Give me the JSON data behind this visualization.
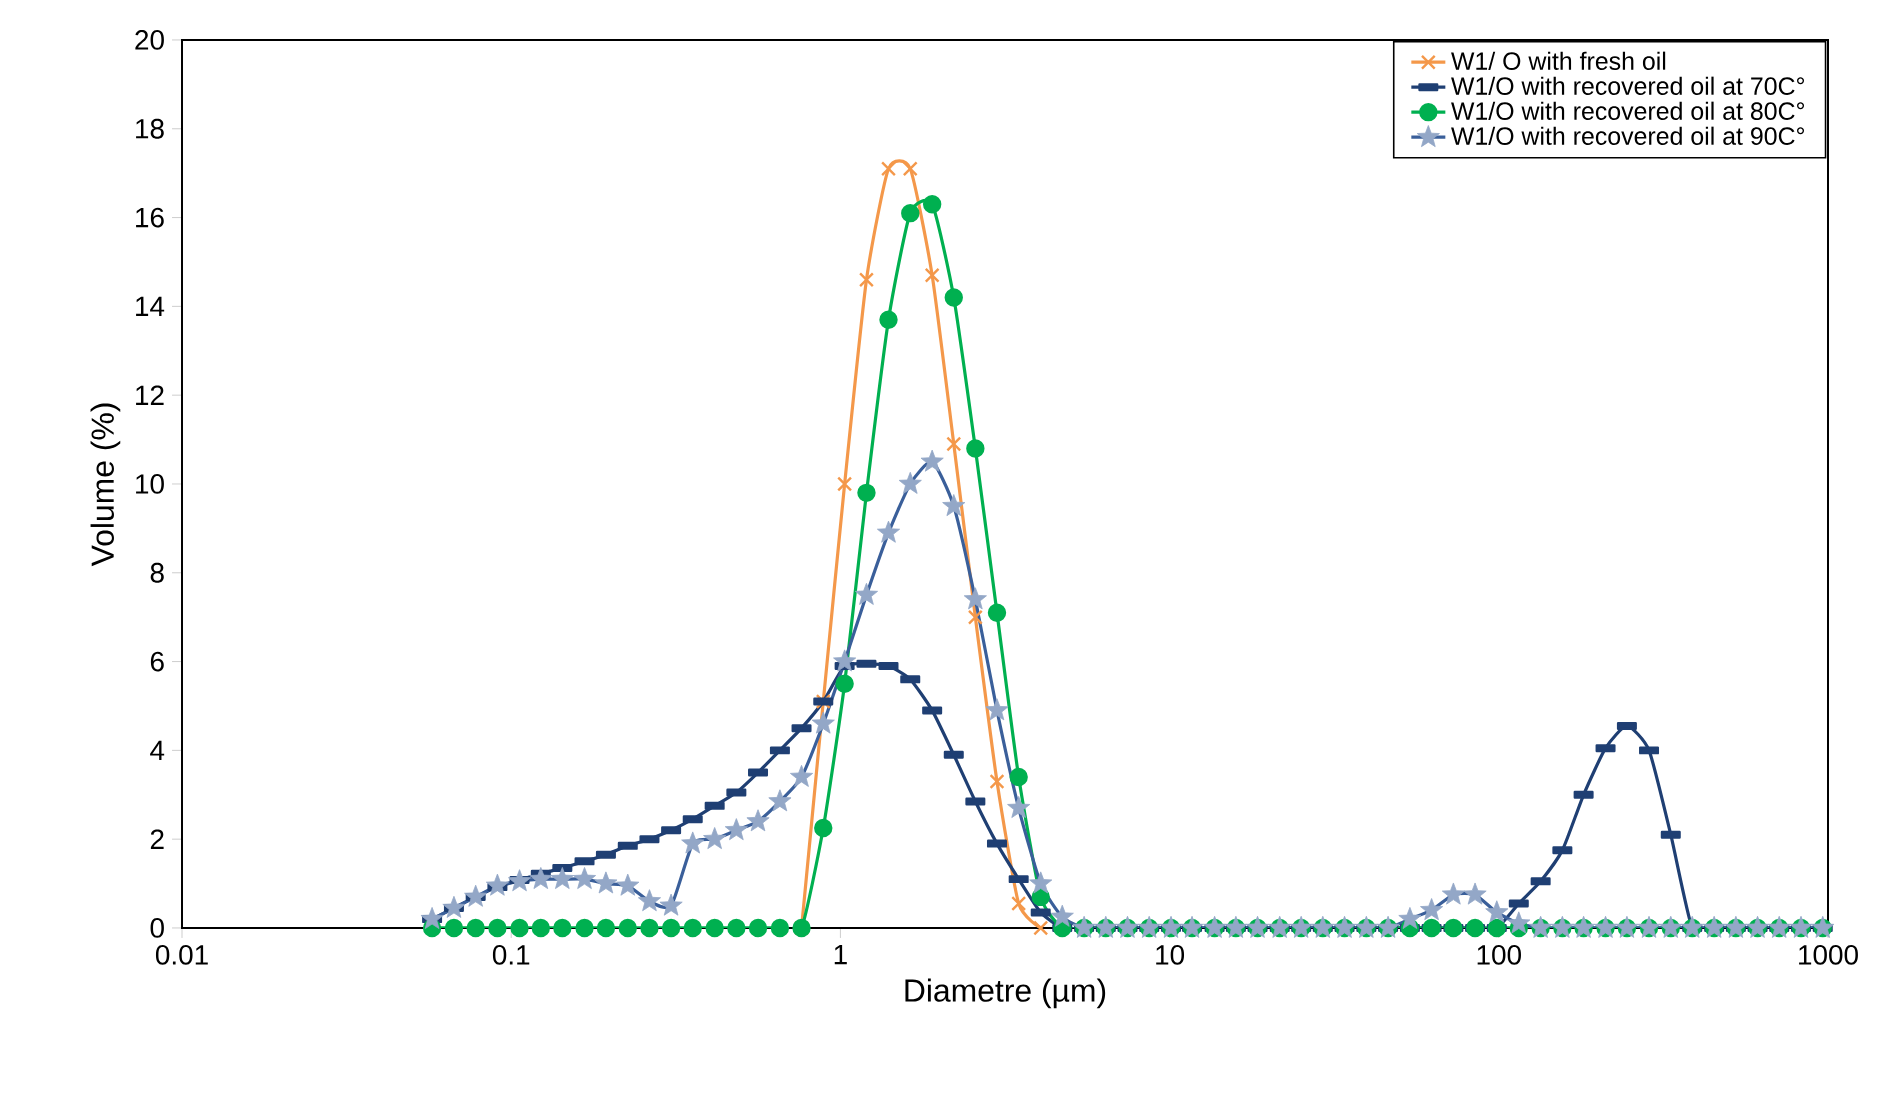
{
  "chart_data": {
    "type": "line",
    "xlabel": "Diametre (µm)",
    "ylabel": "Volume (%)",
    "log": "x",
    "xlim": [
      0.01,
      1000
    ],
    "xticks": [
      0.01,
      0.1,
      1,
      10,
      100,
      1000
    ],
    "ylim": [
      0,
      20
    ],
    "yticks": [
      0,
      2,
      4,
      6,
      8,
      10,
      12,
      14,
      16,
      18,
      20
    ],
    "grid": false,
    "legend": "top right",
    "line_style": "solid",
    "x": [
      0.0575,
      0.067,
      0.078,
      0.0908,
      0.106,
      0.123,
      0.143,
      0.167,
      0.194,
      0.226,
      0.263,
      0.306,
      0.356,
      0.415,
      0.483,
      0.562,
      0.655,
      0.762,
      0.887,
      1.03,
      1.2,
      1.4,
      1.63,
      1.9,
      2.21,
      2.57,
      2.99,
      3.48,
      4.06,
      4.72,
      5.5,
      6.4,
      7.45,
      8.67,
      10.1,
      11.7,
      13.7,
      15.9,
      18.5,
      21.6,
      25.1,
      29.2,
      34,
      39.6,
      46.1,
      53.7,
      62.5,
      72.8,
      84.7,
      98.6,
      115,
      134,
      156,
      181,
      211,
      245,
      286,
      333,
      387,
      451,
      525,
      611,
      711,
      828,
      964
    ],
    "series": [
      {
        "name": "W1/ O with fresh oil",
        "color": "#f4984a",
        "marker": "cross",
        "values": [
          null,
          null,
          null,
          null,
          null,
          null,
          null,
          null,
          null,
          null,
          null,
          null,
          null,
          null,
          null,
          null,
          null,
          0,
          5.1,
          10,
          14.6,
          17.1,
          17.1,
          14.7,
          10.9,
          7,
          3.3,
          0.55,
          0,
          null,
          null,
          null,
          null,
          null,
          null,
          null,
          null,
          null,
          null,
          null,
          null,
          null,
          null,
          null,
          null,
          null,
          null,
          null,
          null,
          null,
          null,
          null,
          null,
          null,
          null,
          null,
          null,
          null,
          null,
          null,
          null,
          null,
          null,
          null,
          null
        ]
      },
      {
        "name": "W1/O with recovered oil  at 70C°",
        "color": "#1f3f73",
        "marker": "square",
        "values": [
          0.2,
          0.45,
          0.7,
          0.92,
          1.08,
          1.22,
          1.35,
          1.5,
          1.65,
          1.85,
          2,
          2.2,
          2.45,
          2.75,
          3.05,
          3.5,
          4,
          4.5,
          5.1,
          5.9,
          5.95,
          5.9,
          5.6,
          4.9,
          3.9,
          2.85,
          1.9,
          1.1,
          0.35,
          0,
          0,
          0,
          0,
          0,
          0,
          0,
          0,
          0,
          0,
          0,
          0,
          0,
          0,
          0,
          0,
          0,
          0,
          0,
          0,
          0,
          0.55,
          1.05,
          1.75,
          3,
          4.05,
          4.55,
          4,
          2.1,
          0,
          0,
          0,
          0,
          0,
          0,
          0
        ]
      },
      {
        "name": "W1/O with recovered oil at 80C°",
        "color": "#00b050",
        "marker": "circle",
        "values": [
          0,
          0,
          0,
          0,
          0,
          0,
          0,
          0,
          0,
          0,
          0,
          0,
          0,
          0,
          0,
          0,
          0,
          0,
          2.25,
          5.5,
          9.8,
          13.7,
          16.1,
          16.3,
          14.2,
          10.8,
          7.1,
          3.4,
          0.7,
          0,
          0,
          0,
          0,
          0,
          0,
          0,
          0,
          0,
          0,
          0,
          0,
          0,
          0,
          0,
          0,
          0,
          0,
          0,
          0,
          0,
          0,
          0,
          0,
          0,
          0,
          0,
          0,
          0,
          0,
          0,
          0,
          0,
          0,
          0,
          0
        ]
      },
      {
        "name": "W1/O with recovered oil at  90C°",
        "color": "#3a5f9a",
        "marker": "star",
        "values": [
          0.2,
          0.45,
          0.7,
          0.95,
          1.05,
          1.1,
          1.1,
          1.1,
          1,
          0.95,
          0.6,
          0.5,
          1.9,
          2,
          2.2,
          2.4,
          2.85,
          3.4,
          4.6,
          6,
          7.5,
          8.9,
          10,
          10.5,
          9.5,
          7.4,
          4.9,
          2.7,
          1,
          0.25,
          0,
          0,
          0,
          0,
          0,
          0,
          0,
          0,
          0,
          0,
          0,
          0,
          0,
          0,
          0,
          0.2,
          0.4,
          0.75,
          0.75,
          0.35,
          0.1,
          0,
          0,
          0,
          0,
          0,
          0,
          0,
          0,
          0,
          0,
          0,
          0,
          0,
          0
        ]
      }
    ]
  }
}
